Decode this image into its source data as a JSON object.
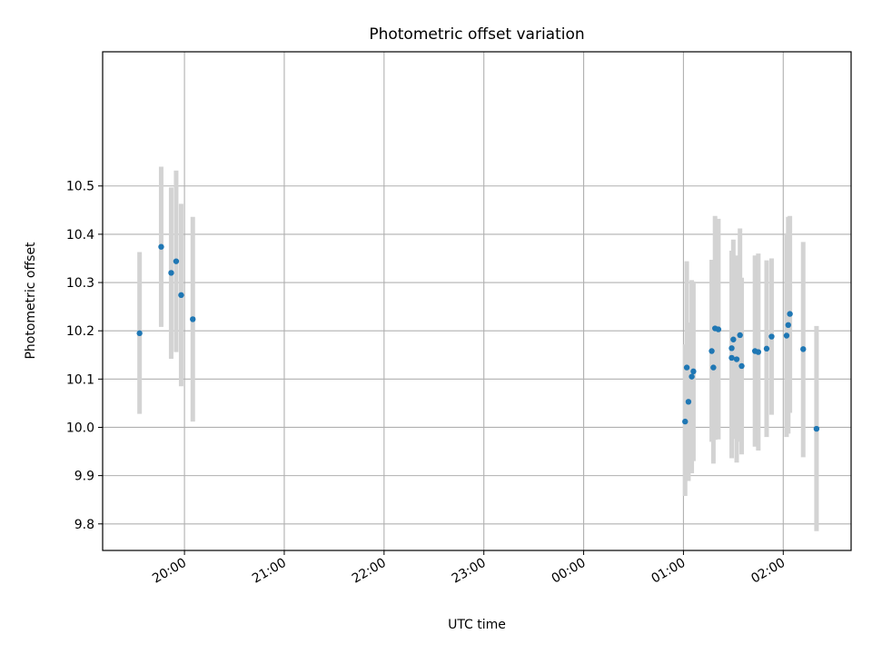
{
  "chart_data": {
    "type": "scatter",
    "title": "Photometric offset variation",
    "xlabel": "UTC time",
    "ylabel": "Photometric offset",
    "x_tick_labels": [
      "20:00",
      "21:00",
      "22:00",
      "23:00",
      "00:00",
      "01:00",
      "02:00"
    ],
    "x_ticks_hours": [
      20,
      21,
      22,
      23,
      24,
      25,
      26
    ],
    "y_ticks": [
      9.8,
      9.9,
      10.0,
      10.1,
      10.2,
      10.3,
      10.4,
      10.5
    ],
    "y_tick_labels": [
      "9.8",
      "9.9",
      "10.0",
      "10.1",
      "10.2",
      "10.3",
      "10.4",
      "10.5"
    ],
    "x_range_hours": [
      19.18,
      26.68
    ],
    "ylim": [
      9.745,
      10.778
    ],
    "grid": true,
    "point_color": "#1f77b4",
    "errorbar_color": "#d3d3d3",
    "points": [
      {
        "x": "19:33",
        "y": 10.195,
        "lo": 10.028,
        "hi": 10.363
      },
      {
        "x": "19:46",
        "y": 10.374,
        "lo": 10.208,
        "hi": 10.54
      },
      {
        "x": "19:52",
        "y": 10.32,
        "lo": 10.142,
        "hi": 10.497
      },
      {
        "x": "19:55",
        "y": 10.344,
        "lo": 10.156,
        "hi": 10.532
      },
      {
        "x": "19:58",
        "y": 10.274,
        "lo": 10.085,
        "hi": 10.463
      },
      {
        "x": "20:05",
        "y": 10.224,
        "lo": 10.012,
        "hi": 10.436
      },
      {
        "x": "01:01",
        "y": 10.012,
        "lo": 9.858,
        "hi": 10.172
      },
      {
        "x": "01:02",
        "y": 10.124,
        "lo": 9.905,
        "hi": 10.344
      },
      {
        "x": "01:03",
        "y": 10.053,
        "lo": 9.889,
        "hi": 10.217
      },
      {
        "x": "01:05",
        "y": 10.105,
        "lo": 9.905,
        "hi": 10.305
      },
      {
        "x": "01:06",
        "y": 10.116,
        "lo": 9.93,
        "hi": 10.302
      },
      {
        "x": "01:17",
        "y": 10.158,
        "lo": 9.97,
        "hi": 10.347
      },
      {
        "x": "01:18",
        "y": 10.124,
        "lo": 9.925,
        "hi": 10.324
      },
      {
        "x": "01:19",
        "y": 10.205,
        "lo": 9.974,
        "hi": 10.438
      },
      {
        "x": "01:21",
        "y": 10.203,
        "lo": 9.975,
        "hi": 10.432
      },
      {
        "x": "01:29",
        "y": 10.164,
        "lo": 9.962,
        "hi": 10.366
      },
      {
        "x": "01:29",
        "y": 10.144,
        "lo": 9.936,
        "hi": 10.352
      },
      {
        "x": "01:30",
        "y": 10.182,
        "lo": 9.976,
        "hi": 10.389
      },
      {
        "x": "01:32",
        "y": 10.141,
        "lo": 9.927,
        "hi": 10.356
      },
      {
        "x": "01:34",
        "y": 10.191,
        "lo": 9.97,
        "hi": 10.412
      },
      {
        "x": "01:35",
        "y": 10.127,
        "lo": 9.944,
        "hi": 10.31
      },
      {
        "x": "01:43",
        "y": 10.158,
        "lo": 9.96,
        "hi": 10.356
      },
      {
        "x": "01:45",
        "y": 10.156,
        "lo": 9.952,
        "hi": 10.36
      },
      {
        "x": "01:50",
        "y": 10.163,
        "lo": 9.98,
        "hi": 10.346
      },
      {
        "x": "01:53",
        "y": 10.188,
        "lo": 10.026,
        "hi": 10.35
      },
      {
        "x": "02:02",
        "y": 10.19,
        "lo": 9.98,
        "hi": 10.402
      },
      {
        "x": "02:03",
        "y": 10.212,
        "lo": 9.987,
        "hi": 10.436
      },
      {
        "x": "02:04",
        "y": 10.235,
        "lo": 10.03,
        "hi": 10.438
      },
      {
        "x": "02:12",
        "y": 10.162,
        "lo": 9.938,
        "hi": 10.384
      },
      {
        "x": "02:20",
        "y": 9.997,
        "lo": 9.785,
        "hi": 10.21
      }
    ]
  }
}
